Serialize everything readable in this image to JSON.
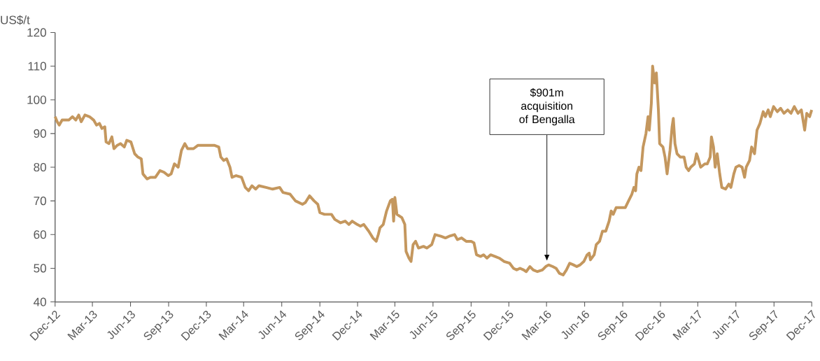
{
  "chart_data": {
    "type": "line",
    "ylabel": "US$/t",
    "color": "#c4975e",
    "grid": false,
    "marker": "none",
    "line_style": "solid",
    "ylim": [
      40,
      120
    ],
    "yticks": [
      40,
      50,
      60,
      70,
      80,
      90,
      100,
      110,
      120
    ],
    "xlim": [
      "2012-12-01",
      "2017-12-01"
    ],
    "xticks": [
      {
        "value": "2012-12-01",
        "label": "Dec-12"
      },
      {
        "value": "2013-03-01",
        "label": "Mar-13"
      },
      {
        "value": "2013-06-01",
        "label": "Jun-13"
      },
      {
        "value": "2013-09-01",
        "label": "Sep-13"
      },
      {
        "value": "2013-12-01",
        "label": "Dec-13"
      },
      {
        "value": "2014-03-01",
        "label": "Mar-14"
      },
      {
        "value": "2014-06-01",
        "label": "Jun-14"
      },
      {
        "value": "2014-09-01",
        "label": "Sep-14"
      },
      {
        "value": "2014-12-01",
        "label": "Dec-14"
      },
      {
        "value": "2015-03-01",
        "label": "Mar-15"
      },
      {
        "value": "2015-06-01",
        "label": "Jun-15"
      },
      {
        "value": "2015-09-01",
        "label": "Sep-15"
      },
      {
        "value": "2015-12-01",
        "label": "Dec-15"
      },
      {
        "value": "2016-03-01",
        "label": "Mar-16"
      },
      {
        "value": "2016-06-01",
        "label": "Jun-16"
      },
      {
        "value": "2016-09-01",
        "label": "Sep-16"
      },
      {
        "value": "2016-12-01",
        "label": "Dec-16"
      },
      {
        "value": "2017-03-01",
        "label": "Mar-17"
      },
      {
        "value": "2017-06-01",
        "label": "Jun-17"
      },
      {
        "value": "2017-09-01",
        "label": "Sep-17"
      },
      {
        "value": "2017-12-01",
        "label": "Dec-17"
      }
    ],
    "annotations": [
      "$901m acquisition of Bengalla"
    ],
    "x": [
      "2012-12-01",
      "2012-12-06",
      "2012-12-11",
      "2012-12-18",
      "2013-01-03",
      "2013-01-12",
      "2013-01-20",
      "2013-01-27",
      "2013-02-02",
      "2013-02-11",
      "2013-02-22",
      "2013-03-04",
      "2013-03-11",
      "2013-03-18",
      "2013-03-24",
      "2013-03-31",
      "2013-04-03",
      "2013-04-10",
      "2013-04-17",
      "2013-04-22",
      "2013-04-30",
      "2013-05-08",
      "2013-05-17",
      "2013-05-23",
      "2013-06-02",
      "2013-06-11",
      "2013-06-19",
      "2013-06-27",
      "2013-07-01",
      "2013-07-11",
      "2013-07-19",
      "2013-07-31",
      "2013-08-11",
      "2013-08-21",
      "2013-08-31",
      "2013-09-07",
      "2013-09-15",
      "2013-09-24",
      "2013-10-02",
      "2013-10-10",
      "2013-10-17",
      "2013-10-31",
      "2013-11-11",
      "2013-12-03",
      "2013-12-20",
      "2013-12-31",
      "2014-01-05",
      "2014-01-12",
      "2014-01-19",
      "2014-01-27",
      "2014-02-01",
      "2014-02-11",
      "2014-02-24",
      "2014-03-05",
      "2014-03-13",
      "2014-03-21",
      "2014-03-30",
      "2014-04-07",
      "2014-04-24",
      "2014-05-10",
      "2014-05-27",
      "2014-06-04",
      "2014-06-21",
      "2014-07-04",
      "2014-07-21",
      "2014-07-28",
      "2014-08-07",
      "2014-08-18",
      "2014-08-27",
      "2014-09-01",
      "2014-09-12",
      "2014-09-29",
      "2014-10-07",
      "2014-10-21",
      "2014-11-01",
      "2014-11-10",
      "2014-11-18",
      "2014-11-30",
      "2014-12-08",
      "2014-12-16",
      "2014-12-28",
      "2015-01-07",
      "2015-01-15",
      "2015-01-20",
      "2015-01-24",
      "2015-02-01",
      "2015-02-09",
      "2015-02-18",
      "2015-02-23",
      "2015-02-26",
      "2015-03-01",
      "2015-03-06",
      "2015-03-18",
      "2015-03-25",
      "2015-03-28",
      "2015-04-04",
      "2015-04-09",
      "2015-04-14",
      "2015-04-20",
      "2015-04-27",
      "2015-05-09",
      "2015-05-17",
      "2015-05-29",
      "2015-06-06",
      "2015-06-20",
      "2015-07-01",
      "2015-07-10",
      "2015-07-23",
      "2015-07-30",
      "2015-08-09",
      "2015-08-20",
      "2015-09-01",
      "2015-09-08",
      "2015-09-14",
      "2015-09-24",
      "2015-10-01",
      "2015-10-09",
      "2015-10-18",
      "2015-10-29",
      "2015-11-08",
      "2015-11-20",
      "2015-12-03",
      "2015-12-12",
      "2015-12-20",
      "2015-12-28",
      "2016-01-06",
      "2016-01-12",
      "2016-01-21",
      "2016-01-29",
      "2016-02-08",
      "2016-02-20",
      "2016-02-28",
      "2016-03-06",
      "2016-03-16",
      "2016-03-24",
      "2016-04-01",
      "2016-04-10",
      "2016-04-18",
      "2016-04-26",
      "2016-05-05",
      "2016-05-13",
      "2016-05-21",
      "2016-05-30",
      "2016-06-07",
      "2016-06-12",
      "2016-06-15",
      "2016-06-24",
      "2016-06-29",
      "2016-07-07",
      "2016-07-14",
      "2016-07-22",
      "2016-07-30",
      "2016-08-04",
      "2016-08-09",
      "2016-08-16",
      "2016-08-29",
      "2016-09-07",
      "2016-09-15",
      "2016-09-23",
      "2016-09-28",
      "2016-10-02",
      "2016-10-05",
      "2016-10-10",
      "2016-10-15",
      "2016-10-20",
      "2016-10-27",
      "2016-11-01",
      "2016-11-04",
      "2016-11-09",
      "2016-11-12",
      "2016-11-17",
      "2016-11-21",
      "2016-11-26",
      "2016-11-29",
      "2016-12-07",
      "2016-12-12",
      "2016-12-17",
      "2016-12-24",
      "2016-12-29",
      "2017-01-01",
      "2017-01-05",
      "2017-01-10",
      "2017-01-18",
      "2017-01-27",
      "2017-02-01",
      "2017-02-07",
      "2017-02-12",
      "2017-02-21",
      "2017-02-26",
      "2017-03-01",
      "2017-03-08",
      "2017-03-18",
      "2017-03-24",
      "2017-03-31",
      "2017-04-03",
      "2017-04-08",
      "2017-04-12",
      "2017-04-17",
      "2017-04-23",
      "2017-04-28",
      "2017-05-07",
      "2017-05-15",
      "2017-05-20",
      "2017-05-27",
      "2017-06-01",
      "2017-06-09",
      "2017-06-16",
      "2017-06-22",
      "2017-06-26",
      "2017-07-04",
      "2017-07-09",
      "2017-07-16",
      "2017-07-22",
      "2017-07-29",
      "2017-08-06",
      "2017-08-11",
      "2017-08-18",
      "2017-08-23",
      "2017-08-31",
      "2017-09-09",
      "2017-09-17",
      "2017-09-25",
      "2017-10-04",
      "2017-10-12",
      "2017-10-20",
      "2017-10-29",
      "2017-11-06",
      "2017-11-14",
      "2017-11-19",
      "2017-11-26",
      "2017-12-01"
    ],
    "values": [
      95,
      93.5,
      92.5,
      94,
      94,
      95,
      94,
      95.5,
      93.5,
      95.5,
      95,
      94,
      92.5,
      93,
      91.5,
      92,
      87.5,
      87,
      89,
      85.5,
      86.5,
      87,
      86,
      88,
      87.5,
      84,
      83,
      82.5,
      78,
      76.5,
      77,
      77,
      79,
      78.5,
      77.5,
      78,
      81,
      80,
      85,
      87,
      85.5,
      85.5,
      86.5,
      86.5,
      86.5,
      86,
      83,
      82,
      82.5,
      80,
      77,
      77.5,
      77,
      74,
      73,
      74.5,
      73.5,
      74.5,
      74,
      73.5,
      74,
      72.5,
      72,
      70,
      69,
      69.5,
      71.5,
      70,
      69,
      66.5,
      66,
      66,
      64.5,
      63.5,
      64,
      63,
      64,
      63,
      62.5,
      63,
      61,
      59,
      58,
      60,
      62,
      63,
      67,
      70,
      70.5,
      64,
      71,
      66,
      65,
      63,
      55,
      53,
      52,
      57,
      58,
      56,
      56.5,
      56,
      57,
      60,
      59.5,
      59,
      59.5,
      60,
      58.5,
      59,
      58,
      58,
      57.5,
      54,
      53.5,
      54,
      53,
      54,
      53.5,
      53,
      52,
      51.5,
      50,
      49.5,
      50,
      49.5,
      49,
      50.5,
      49.5,
      49,
      49.5,
      50.5,
      51,
      50.5,
      50,
      48.5,
      48,
      49.5,
      51.5,
      51,
      50.5,
      51,
      52,
      54,
      54.5,
      52.5,
      54,
      57,
      58,
      61,
      61,
      64,
      67,
      66,
      68,
      68,
      68,
      70,
      72,
      74,
      73,
      78,
      80,
      79,
      86,
      90,
      95,
      91,
      99,
      110,
      105,
      108,
      97,
      87,
      86,
      83,
      78,
      85,
      92,
      94.5,
      87,
      84,
      83,
      83,
      80,
      79,
      80,
      81,
      84,
      83,
      80,
      81,
      81,
      83,
      89,
      86,
      80,
      84,
      78,
      74,
      73.5,
      75,
      74,
      78,
      80,
      80.5,
      80,
      77,
      80,
      82,
      86,
      84,
      91,
      93,
      96.5,
      95,
      97,
      95,
      98,
      96.5,
      97.5,
      96,
      97,
      96,
      98,
      96,
      97,
      91,
      96,
      95,
      97
    ]
  }
}
